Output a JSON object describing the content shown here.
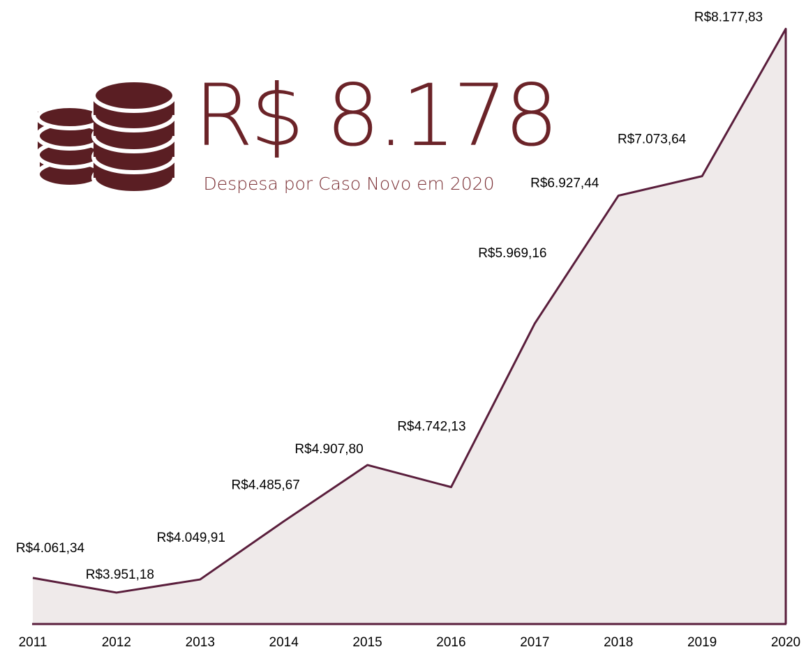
{
  "chart_data": {
    "type": "area",
    "headline": "R$ 8.178",
    "subtitle": "Despesa por Caso Novo em 2020",
    "categories": [
      "2011",
      "2012",
      "2013",
      "2014",
      "2015",
      "2016",
      "2017",
      "2018",
      "2019",
      "2020"
    ],
    "values": [
      4061.34,
      3951.18,
      4049.91,
      4485.67,
      4907.8,
      4742.13,
      5969.16,
      6927.44,
      7073.64,
      8177.83
    ],
    "value_labels": [
      "R$4.061,34",
      "R$3.951,18",
      "R$4.049,91",
      "R$4.485,67",
      "R$4.907,80",
      "R$4.742,13",
      "R$5.969,16",
      "R$6.927,44",
      "R$7.073,64",
      "R$8.177,83"
    ],
    "color": "#5a1e3c",
    "fill": "#efeaea",
    "ylim": [
      3700,
      8300
    ]
  }
}
